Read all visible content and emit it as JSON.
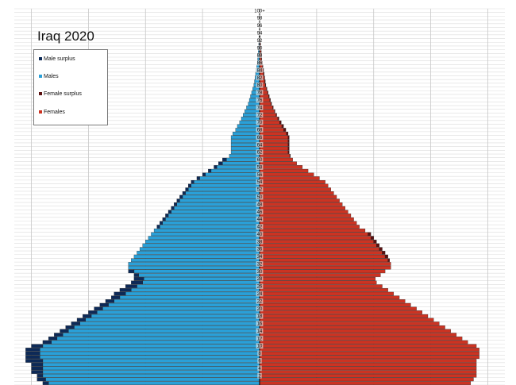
{
  "chart_data": {
    "type": "bar",
    "title": "Iraq 2020",
    "orientation": "horizontal-population-pyramid",
    "legend": [
      {
        "label": "Male surplus",
        "color": "#0d2a58"
      },
      {
        "label": "Males",
        "color": "#2aa0d8"
      },
      {
        "label": "Female surplus",
        "color": "#5a1010"
      },
      {
        "label": "Females",
        "color": "#cc3322"
      }
    ],
    "legend_position": "top-left",
    "grid": true,
    "age_labels": [
      "100+",
      "98",
      "96",
      "94",
      "92",
      "90",
      "88",
      "86",
      "84",
      "82",
      "80",
      "78",
      "76",
      "74",
      "72",
      "70",
      "68",
      "66",
      "64",
      "62",
      "60",
      "58",
      "56",
      "54",
      "52",
      "50",
      "48",
      "46",
      "44",
      "42",
      "40",
      "38",
      "36",
      "34",
      "32",
      "30",
      "28",
      "26",
      "24",
      "22",
      "20",
      "18",
      "16",
      "14",
      "12",
      "10",
      "8",
      "6",
      "4",
      "2"
    ],
    "ages": [
      0,
      1,
      2,
      3,
      4,
      5,
      6,
      7,
      8,
      9,
      10,
      11,
      12,
      13,
      14,
      15,
      16,
      17,
      18,
      19,
      20,
      21,
      22,
      23,
      24,
      25,
      26,
      27,
      28,
      29,
      30,
      31,
      32,
      33,
      34,
      35,
      36,
      37,
      38,
      39,
      40,
      41,
      42,
      43,
      44,
      45,
      46,
      47,
      48,
      49,
      50,
      51,
      52,
      53,
      54,
      55,
      56,
      57,
      58,
      59,
      60,
      61,
      62,
      63,
      64,
      65,
      66,
      67,
      68,
      69,
      70,
      71,
      72,
      73,
      74,
      75,
      76,
      77,
      78,
      79,
      80,
      81,
      82,
      83,
      84,
      85,
      86,
      87,
      88,
      89,
      90,
      91,
      92,
      93,
      94,
      95,
      96,
      97,
      98,
      99,
      100
    ],
    "xlim": [
      -43,
      43
    ],
    "series": [
      {
        "name": "Males",
        "values": [
          38,
          39,
          39,
          40,
          40,
          40,
          41,
          41,
          41,
          41,
          40,
          38,
          37,
          36,
          35,
          34,
          33,
          32,
          31,
          30,
          29,
          28,
          27,
          26,
          25.5,
          24.5,
          23.5,
          22.5,
          22,
          22,
          23,
          23,
          23,
          22.5,
          22,
          21.5,
          21,
          20.5,
          20,
          19.5,
          19,
          18.5,
          18,
          17.5,
          17,
          16.5,
          16,
          15.5,
          15,
          14.5,
          14,
          13.5,
          13,
          12.5,
          12,
          11,
          10,
          9,
          8,
          7.2,
          6.5,
          5.3,
          5,
          5,
          5,
          5,
          5,
          4.7,
          4.2,
          3.9,
          3.5,
          3.2,
          2.9,
          2.6,
          2.3,
          2,
          1.8,
          1.6,
          1.4,
          1.2,
          1,
          0.9,
          0.8,
          0.7,
          0.6,
          0.5,
          0.4,
          0.35,
          0.3,
          0.25,
          0.2,
          0.15,
          0.1,
          0.08,
          0.06,
          0.05,
          0.04,
          0.03,
          0.02,
          0.01,
          0.01
        ]
      },
      {
        "name": "Females",
        "values": [
          37,
          37.5,
          38,
          38,
          38,
          38,
          38,
          38.5,
          38.5,
          38.5,
          38,
          36.5,
          35.5,
          34.5,
          33.5,
          32.5,
          31.5,
          30.5,
          29.5,
          28.5,
          27.5,
          26.5,
          25.5,
          24.5,
          23.5,
          22.5,
          21.5,
          20.5,
          20.3,
          21.2,
          22,
          23,
          23,
          22.8,
          22.5,
          22,
          21.5,
          21,
          20.5,
          20,
          19.5,
          18.5,
          17.5,
          17,
          16.5,
          16,
          15.5,
          15,
          14.5,
          14,
          13.5,
          13,
          12.5,
          12,
          11.5,
          10.5,
          9.5,
          8.5,
          7.5,
          6.5,
          5.8,
          5.4,
          5.2,
          5.2,
          5.2,
          5.2,
          5.2,
          5,
          4.6,
          4.2,
          3.8,
          3.4,
          3,
          2.7,
          2.4,
          2.1,
          1.9,
          1.7,
          1.5,
          1.3,
          1.1,
          1,
          0.9,
          0.8,
          0.7,
          0.6,
          0.5,
          0.4,
          0.35,
          0.3,
          0.25,
          0.2,
          0.15,
          0.1,
          0.08,
          0.06,
          0.05,
          0.04,
          0.03,
          0.02,
          0.01
        ]
      }
    ]
  }
}
